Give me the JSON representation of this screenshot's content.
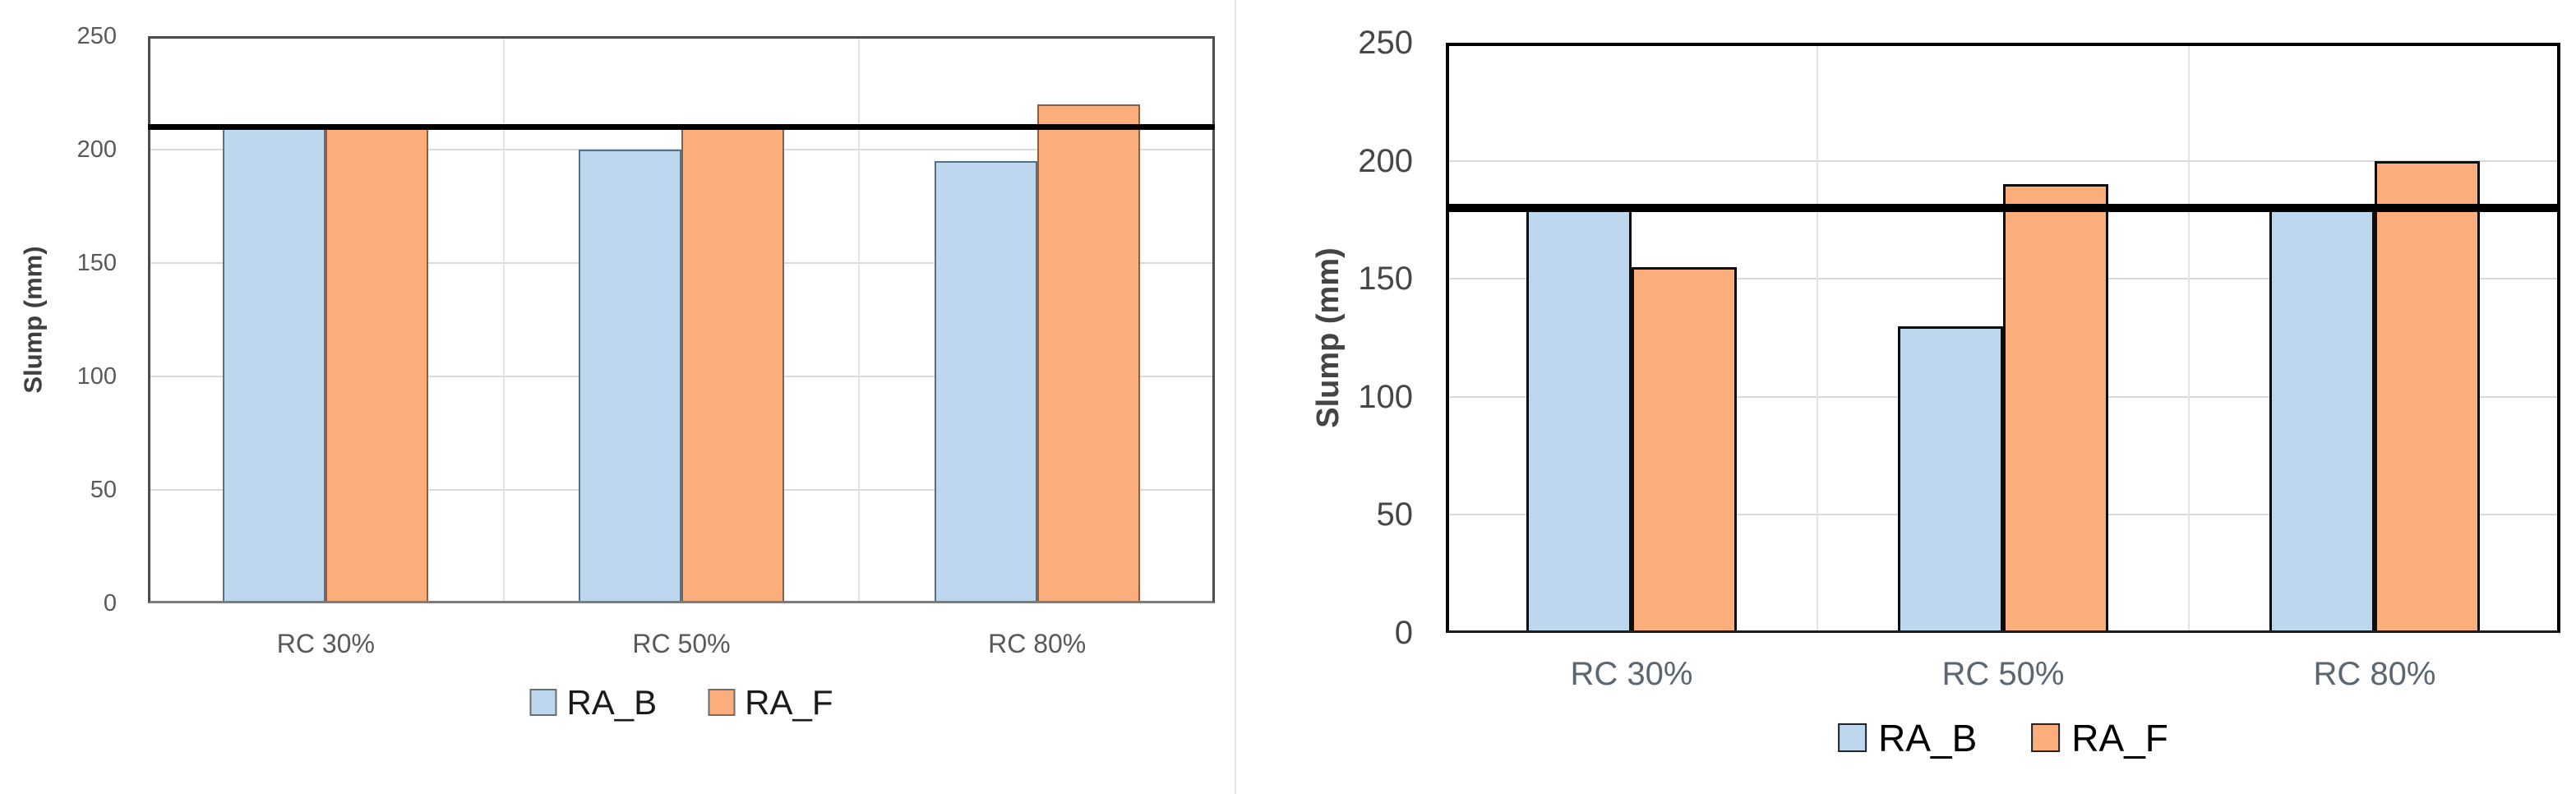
{
  "figure": {
    "background": "#ffffff",
    "series_colors": {
      "RA_B": "#BDD7EE",
      "RA_F": "#FBAD7C"
    },
    "reference_line_color": "#000000"
  },
  "chart_data": [
    {
      "id": "left",
      "type": "bar",
      "title": "",
      "ylabel": "Slump (mm)",
      "xlabel": "",
      "ylim": [
        0,
        250
      ],
      "yticks": [
        0,
        50,
        100,
        150,
        200,
        250
      ],
      "grid": true,
      "legend_position": "bottom",
      "categories": [
        "RC 30%",
        "RC 50%",
        "RC 80%"
      ],
      "series": [
        {
          "name": "RA_B",
          "color": "#BDD7EE",
          "values": [
            210,
            200,
            195
          ]
        },
        {
          "name": "RA_F",
          "color": "#FBAD7C",
          "values": [
            210,
            210,
            220
          ]
        }
      ],
      "reference_line_y": 210
    },
    {
      "id": "right",
      "type": "bar",
      "title": "",
      "ylabel": "Slump (mm)",
      "xlabel": "",
      "ylim": [
        0,
        250
      ],
      "yticks": [
        0,
        50,
        100,
        150,
        200,
        250
      ],
      "grid": true,
      "legend_position": "bottom",
      "categories": [
        "RC 30%",
        "RC 50%",
        "RC 80%"
      ],
      "series": [
        {
          "name": "RA_B",
          "color": "#BDD7EE",
          "values": [
            180,
            130,
            180
          ]
        },
        {
          "name": "RA_F",
          "color": "#FBAD7C",
          "values": [
            155,
            190,
            200
          ]
        }
      ],
      "reference_line_y": 180
    }
  ]
}
